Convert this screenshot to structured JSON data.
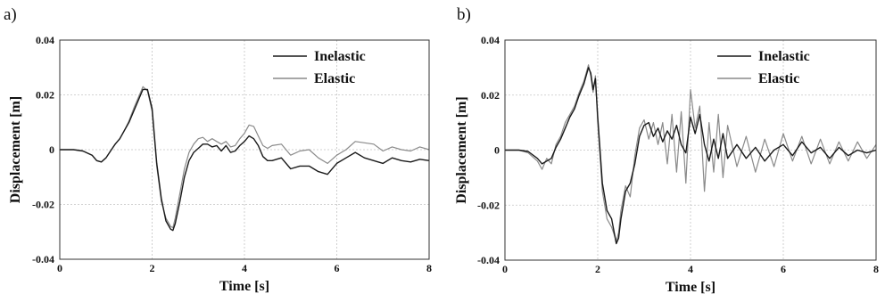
{
  "panels": [
    {
      "label": "a)"
    },
    {
      "label": "b)"
    }
  ],
  "colors": {
    "inelastic": "#1a1a1a",
    "elastic": "#8a8a8a",
    "grid": "#c4c4c4"
  },
  "chart_data": [
    {
      "type": "line",
      "panel": "a)",
      "xlabel": "Time [s]",
      "ylabel": "Displacement [m]",
      "xlim": [
        0,
        8
      ],
      "ylim": [
        -0.04,
        0.04
      ],
      "xticks": [
        0,
        2,
        4,
        6,
        8
      ],
      "yticks": [
        -0.04,
        -0.02,
        0,
        0.02,
        0.04
      ],
      "ytick_labels": [
        "-0.04",
        "-0.02",
        "0",
        "0.02",
        "0.04"
      ],
      "grid": true,
      "legend": "top-right",
      "series": [
        {
          "name": "Inelastic",
          "x": [
            0,
            0.3,
            0.5,
            0.7,
            0.8,
            0.9,
            1.0,
            1.1,
            1.2,
            1.3,
            1.4,
            1.5,
            1.6,
            1.7,
            1.8,
            1.9,
            2.0,
            2.1,
            2.2,
            2.3,
            2.4,
            2.45,
            2.5,
            2.6,
            2.7,
            2.8,
            2.9,
            3.0,
            3.1,
            3.2,
            3.3,
            3.4,
            3.5,
            3.6,
            3.7,
            3.8,
            3.9,
            4.0,
            4.1,
            4.2,
            4.3,
            4.4,
            4.5,
            4.6,
            4.8,
            5.0,
            5.2,
            5.4,
            5.6,
            5.8,
            6.0,
            6.2,
            6.4,
            6.6,
            6.8,
            7.0,
            7.2,
            7.4,
            7.6,
            7.8,
            8.0
          ],
          "y": [
            0,
            0,
            -0.0005,
            -0.002,
            -0.004,
            -0.0045,
            -0.003,
            -0.0005,
            0.002,
            0.004,
            0.007,
            0.01,
            0.014,
            0.018,
            0.022,
            0.022,
            0.015,
            -0.005,
            -0.018,
            -0.026,
            -0.029,
            -0.0295,
            -0.027,
            -0.019,
            -0.01,
            -0.004,
            -0.001,
            0.0005,
            0.002,
            0.002,
            0.001,
            0.0015,
            -0.0005,
            0.0015,
            -0.001,
            -0.0005,
            0.0015,
            0.003,
            0.005,
            0.004,
            0.0015,
            -0.0025,
            -0.004,
            -0.004,
            -0.003,
            -0.007,
            -0.006,
            -0.006,
            -0.008,
            -0.009,
            -0.005,
            -0.003,
            -0.001,
            -0.003,
            -0.004,
            -0.005,
            -0.003,
            -0.004,
            -0.0045,
            -0.0035,
            -0.004
          ]
        },
        {
          "name": "Elastic",
          "x": [
            0,
            0.3,
            0.5,
            0.7,
            0.8,
            0.9,
            1.0,
            1.1,
            1.2,
            1.3,
            1.4,
            1.5,
            1.6,
            1.7,
            1.8,
            1.9,
            2.0,
            2.1,
            2.2,
            2.3,
            2.4,
            2.45,
            2.5,
            2.6,
            2.7,
            2.8,
            2.9,
            3.0,
            3.1,
            3.2,
            3.3,
            3.4,
            3.5,
            3.6,
            3.7,
            3.8,
            3.9,
            4.0,
            4.1,
            4.2,
            4.3,
            4.4,
            4.5,
            4.6,
            4.8,
            5.0,
            5.2,
            5.4,
            5.6,
            5.8,
            6.0,
            6.2,
            6.4,
            6.6,
            6.8,
            7.0,
            7.2,
            7.4,
            7.6,
            7.8,
            8.0
          ],
          "y": [
            0,
            0,
            -0.0005,
            -0.002,
            -0.004,
            -0.0045,
            -0.003,
            -0.0005,
            0.002,
            0.004,
            0.007,
            0.0105,
            0.015,
            0.019,
            0.023,
            0.0215,
            0.014,
            -0.006,
            -0.019,
            -0.025,
            -0.028,
            -0.0285,
            -0.025,
            -0.016,
            -0.007,
            -0.001,
            0.002,
            0.004,
            0.0045,
            0.003,
            0.004,
            0.003,
            0.002,
            0.003,
            0.001,
            0.0015,
            0.004,
            0.006,
            0.009,
            0.0085,
            0.005,
            0.0015,
            0.0005,
            0.0015,
            0.002,
            -0.002,
            -0.0005,
            0,
            -0.003,
            -0.005,
            -0.002,
            0,
            0.003,
            0.0025,
            0.002,
            -0.0005,
            0.001,
            0,
            -0.0005,
            0.001,
            0.0
          ]
        }
      ]
    },
    {
      "type": "line",
      "panel": "b)",
      "xlabel": "Time [s]",
      "ylabel": "Displacement [m]",
      "xlim": [
        0,
        8
      ],
      "ylim": [
        -0.04,
        0.04
      ],
      "xticks": [
        0,
        2,
        4,
        6,
        8
      ],
      "yticks": [
        -0.04,
        -0.02,
        0,
        0.02,
        0.04
      ],
      "ytick_labels": [
        "-0.04",
        "-0.02",
        "0",
        "0.02",
        "0.04"
      ],
      "grid": true,
      "legend": "top-right",
      "series": [
        {
          "name": "Inelastic",
          "x": [
            0,
            0.3,
            0.5,
            0.7,
            0.8,
            0.9,
            1.0,
            1.1,
            1.2,
            1.3,
            1.4,
            1.5,
            1.6,
            1.7,
            1.8,
            1.85,
            1.9,
            1.95,
            2.0,
            2.05,
            2.1,
            2.2,
            2.3,
            2.4,
            2.45,
            2.5,
            2.6,
            2.7,
            2.8,
            2.9,
            3.0,
            3.1,
            3.2,
            3.3,
            3.4,
            3.5,
            3.6,
            3.7,
            3.8,
            3.9,
            4.0,
            4.1,
            4.2,
            4.3,
            4.4,
            4.5,
            4.6,
            4.7,
            4.8,
            5.0,
            5.2,
            5.4,
            5.6,
            5.8,
            6.0,
            6.2,
            6.4,
            6.6,
            6.8,
            7.0,
            7.2,
            7.4,
            7.6,
            7.8,
            8.0
          ],
          "y": [
            0,
            0,
            -0.0005,
            -0.003,
            -0.005,
            -0.004,
            -0.003,
            0.001,
            0.004,
            0.008,
            0.012,
            0.015,
            0.02,
            0.024,
            0.03,
            0.028,
            0.022,
            0.026,
            0.012,
            0.0,
            -0.012,
            -0.022,
            -0.025,
            -0.034,
            -0.032,
            -0.025,
            -0.015,
            -0.012,
            -0.005,
            0.005,
            0.009,
            0.01,
            0.005,
            0.008,
            0.003,
            0.007,
            0.004,
            0.009,
            0.002,
            -0.001,
            0.012,
            0.006,
            0.013,
            0.002,
            -0.004,
            0.004,
            -0.003,
            0.006,
            -0.003,
            0.002,
            -0.003,
            0.001,
            -0.004,
            0.0,
            0.002,
            -0.002,
            0.003,
            -0.001,
            0.001,
            -0.003,
            0.001,
            -0.002,
            0.0,
            -0.001,
            0.0
          ]
        },
        {
          "name": "Elastic",
          "x": [
            0,
            0.3,
            0.5,
            0.7,
            0.8,
            0.9,
            1.0,
            1.1,
            1.2,
            1.3,
            1.4,
            1.5,
            1.6,
            1.7,
            1.8,
            1.85,
            1.9,
            1.95,
            2.0,
            2.05,
            2.1,
            2.2,
            2.3,
            2.4,
            2.45,
            2.5,
            2.6,
            2.7,
            2.8,
            2.9,
            3.0,
            3.1,
            3.2,
            3.3,
            3.4,
            3.5,
            3.6,
            3.7,
            3.8,
            3.9,
            4.0,
            4.1,
            4.2,
            4.3,
            4.4,
            4.5,
            4.6,
            4.7,
            4.8,
            5.0,
            5.2,
            5.4,
            5.6,
            5.8,
            6.0,
            6.2,
            6.4,
            6.6,
            6.8,
            7.0,
            7.2,
            7.4,
            7.6,
            7.8,
            8.0
          ],
          "y": [
            0,
            0,
            -0.001,
            -0.004,
            -0.007,
            -0.003,
            -0.005,
            0.002,
            0.005,
            0.01,
            0.013,
            0.016,
            0.021,
            0.025,
            0.031,
            0.027,
            0.021,
            0.027,
            0.01,
            -0.002,
            -0.015,
            -0.025,
            -0.028,
            -0.033,
            -0.03,
            -0.022,
            -0.013,
            -0.017,
            -0.002,
            0.008,
            0.011,
            0.004,
            0.01,
            0.002,
            0.01,
            -0.005,
            0.013,
            -0.008,
            0.014,
            -0.012,
            0.022,
            0.008,
            0.016,
            -0.015,
            0.01,
            -0.008,
            0.013,
            -0.01,
            0.009,
            -0.006,
            0.005,
            -0.008,
            0.004,
            -0.006,
            0.006,
            -0.004,
            0.005,
            -0.005,
            0.004,
            -0.005,
            0.003,
            -0.004,
            0.003,
            -0.003,
            0.002
          ]
        }
      ]
    }
  ]
}
